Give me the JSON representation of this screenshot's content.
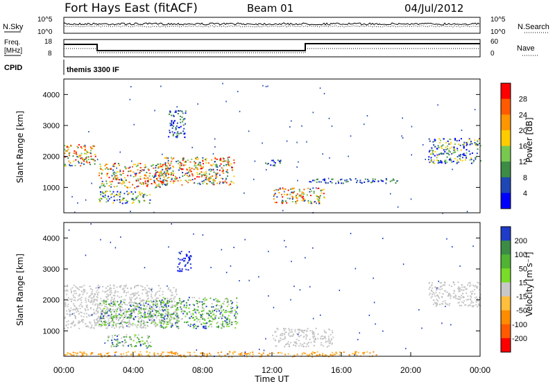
{
  "header": {
    "station": "Fort Hays East (fitACF)",
    "beam": "Beam 01",
    "date": "04/Jul/2012"
  },
  "top_panels": {
    "noise": {
      "left_label": "N.Sky",
      "right_label": "N.Search",
      "left_ticks": [
        "10^5",
        "10^0"
      ],
      "right_ticks": [
        "10^5",
        "10^0"
      ]
    },
    "freq": {
      "left_label_1": "Freq.",
      "left_label_2": "[MHz]",
      "right_label": "Nave",
      "left_ticks": [
        "18",
        "8"
      ],
      "right_ticks": [
        "60",
        "0"
      ]
    },
    "cpid_label": "CPID",
    "cpid_text": "themis 3300 IF"
  },
  "chart_data": [
    {
      "type": "heatmap",
      "name": "power",
      "ylabel": "Slant Range [km]",
      "yticks": [
        "4000",
        "3000",
        "2000",
        "1000"
      ],
      "ylim": [
        180,
        4500
      ],
      "xlim": [
        0,
        24
      ],
      "colorbar_label": "Power [dB]",
      "colorbar_ticks": [
        "28",
        "24",
        "20",
        "16",
        "12",
        "8",
        "4"
      ],
      "colorbar_colors": [
        "#ff0000",
        "#ff5a00",
        "#ff9600",
        "#ffcc00",
        "#78c850",
        "#3c8c46",
        "#1e46b4",
        "#0000ff"
      ],
      "scatter_regions": [
        {
          "t": [
            0.0,
            1.8
          ],
          "r": [
            1700,
            2400
          ],
          "level": "high"
        },
        {
          "t": [
            2.0,
            6.0
          ],
          "r": [
            1000,
            1800
          ],
          "level": "high"
        },
        {
          "t": [
            5.5,
            9.8
          ],
          "r": [
            1100,
            2000
          ],
          "level": "high"
        },
        {
          "t": [
            6.0,
            7.0
          ],
          "r": [
            2600,
            3500
          ],
          "level": "low"
        },
        {
          "t": [
            2.0,
            5.0
          ],
          "r": [
            500,
            900
          ],
          "level": "mid"
        },
        {
          "t": [
            11.5,
            12.5
          ],
          "r": [
            1700,
            1900
          ],
          "level": "low"
        },
        {
          "t": [
            12.0,
            15.0
          ],
          "r": [
            500,
            1000
          ],
          "level": "high"
        },
        {
          "t": [
            14.0,
            19.5
          ],
          "r": [
            1150,
            1300
          ],
          "level": "low"
        },
        {
          "t": [
            21.0,
            24.0
          ],
          "r": [
            1800,
            2600
          ],
          "level": "mid"
        }
      ]
    },
    {
      "type": "heatmap",
      "name": "velocity",
      "ylabel": "Slant Range [km]",
      "yticks": [
        "4000",
        "3000",
        "2000",
        "1000"
      ],
      "ylim": [
        180,
        4500
      ],
      "xlim": [
        0,
        24
      ],
      "xlabel": "Time UT",
      "xticks": [
        "00:00",
        "04:00",
        "08:00",
        "12:00",
        "16:00",
        "20:00",
        "00:00"
      ],
      "colorbar_label": "Velocity [m s⁻¹]",
      "colorbar_ticks": [
        "200",
        "100",
        "50",
        "15",
        "-15",
        "-50",
        "-100",
        "-200"
      ],
      "colorbar_colors": [
        "#1e3cc8",
        "#3c8c46",
        "#50b432",
        "#78dc28",
        "#c8c8c8",
        "#ffbe3c",
        "#ff8c00",
        "#ff5a00",
        "#ff0000"
      ],
      "scatter_regions": [
        {
          "t": [
            0.0,
            6.5
          ],
          "r": [
            1100,
            2500
          ],
          "level": "ground"
        },
        {
          "t": [
            2.0,
            6.0
          ],
          "r": [
            1200,
            2000
          ],
          "level": "green"
        },
        {
          "t": [
            5.5,
            10.0
          ],
          "r": [
            1100,
            2100
          ],
          "level": "green"
        },
        {
          "t": [
            6.5,
            7.3
          ],
          "r": [
            2900,
            3600
          ],
          "level": "blue"
        },
        {
          "t": [
            2.5,
            5.0
          ],
          "r": [
            500,
            900
          ],
          "level": "green"
        },
        {
          "t": [
            12.0,
            15.5
          ],
          "r": [
            500,
            1100
          ],
          "level": "ground"
        },
        {
          "t": [
            21.0,
            24.0
          ],
          "r": [
            1800,
            2600
          ],
          "level": "ground"
        },
        {
          "t": [
            0.0,
            18.0
          ],
          "r": [
            180,
            350
          ],
          "level": "orange"
        }
      ]
    }
  ]
}
